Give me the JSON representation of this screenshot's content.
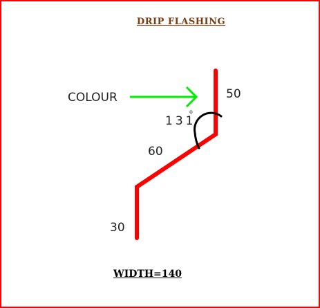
{
  "title": "DRIP  FLASHING",
  "labels": {
    "colour": "COLOUR",
    "angle": "131",
    "degree_symbol": "o",
    "segment_top": "50",
    "segment_middle": "60",
    "segment_bottom": "30"
  },
  "width_label": "WIDTH=140",
  "colors": {
    "flashing": "#ff0000",
    "arrow": "#00ee00",
    "angle_arc": "#000000",
    "title": "#7a3b0f",
    "border": "#ff0000"
  }
}
